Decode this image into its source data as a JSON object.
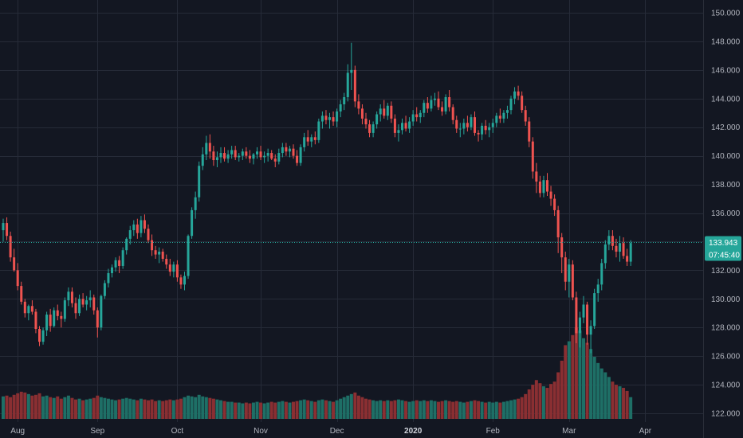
{
  "colors": {
    "background": "#131722",
    "grid": "#262b38",
    "up": "#26a69a",
    "down": "#ef5350",
    "vol_up": "#1e6f66",
    "vol_down": "#8a2f32",
    "price_line": "#26a69a",
    "axis_text": "#b2b5be"
  },
  "price_tag": {
    "price": "133.943",
    "countdown": "07:45:40"
  },
  "chart_data": {
    "type": "candlestick",
    "y_axis": {
      "min": 122,
      "max": 150,
      "ticks": [
        "122.000",
        "124.000",
        "126.000",
        "128.000",
        "130.000",
        "132.000",
        "134.000",
        "136.000",
        "138.000",
        "140.000",
        "142.000",
        "144.000",
        "146.000",
        "148.000",
        "150.000"
      ],
      "position": "right"
    },
    "x_axis": {
      "labels": [
        {
          "text": "Aug",
          "index": 4
        },
        {
          "text": "Sep",
          "index": 26
        },
        {
          "text": "Oct",
          "index": 48
        },
        {
          "text": "Nov",
          "index": 71
        },
        {
          "text": "Dec",
          "index": 92
        },
        {
          "text": "2020",
          "index": 113,
          "bold": true
        },
        {
          "text": "Feb",
          "index": 135
        },
        {
          "text": "Mar",
          "index": 156
        },
        {
          "text": "Apr",
          "index": 177
        }
      ]
    },
    "grid": true,
    "last_price": 133.943,
    "candles": [
      [
        134.8,
        135.6,
        134.0,
        135.3,
        29
      ],
      [
        135.3,
        135.7,
        134.1,
        134.4,
        30
      ],
      [
        134.4,
        134.7,
        132.6,
        132.9,
        28
      ],
      [
        132.9,
        133.5,
        131.9,
        132.0,
        31
      ],
      [
        132.0,
        132.5,
        130.6,
        130.9,
        33
      ],
      [
        130.9,
        131.2,
        129.6,
        129.8,
        35
      ],
      [
        129.8,
        130.0,
        128.7,
        129.0,
        34
      ],
      [
        129.0,
        129.6,
        128.5,
        129.5,
        32
      ],
      [
        129.5,
        129.9,
        128.9,
        129.1,
        30
      ],
      [
        129.1,
        129.3,
        127.6,
        127.9,
        31
      ],
      [
        127.9,
        128.1,
        126.7,
        127.0,
        33
      ],
      [
        127.0,
        128.0,
        126.8,
        127.8,
        29
      ],
      [
        127.8,
        129.1,
        127.4,
        128.9,
        30
      ],
      [
        128.9,
        129.3,
        127.7,
        128.1,
        28
      ],
      [
        128.1,
        129.4,
        128.0,
        129.2,
        27
      ],
      [
        129.2,
        129.6,
        128.5,
        128.8,
        29
      ],
      [
        128.8,
        129.1,
        128.0,
        128.6,
        26
      ],
      [
        128.6,
        130.1,
        128.4,
        129.9,
        28
      ],
      [
        129.9,
        130.8,
        129.5,
        130.5,
        30
      ],
      [
        130.5,
        130.8,
        129.4,
        129.7,
        27
      ],
      [
        129.7,
        130.1,
        128.6,
        129.0,
        25
      ],
      [
        129.0,
        130.3,
        128.8,
        130.0,
        26
      ],
      [
        130.0,
        130.4,
        129.4,
        129.6,
        24
      ],
      [
        129.6,
        130.2,
        129.2,
        129.9,
        25
      ],
      [
        129.9,
        130.6,
        129.4,
        130.1,
        26
      ],
      [
        130.1,
        130.3,
        128.9,
        129.2,
        27
      ],
      [
        129.2,
        129.4,
        127.3,
        128.0,
        30
      ],
      [
        128.0,
        130.3,
        127.8,
        130.2,
        28
      ],
      [
        130.2,
        131.3,
        130.0,
        131.1,
        27
      ],
      [
        131.1,
        132.1,
        130.8,
        131.8,
        26
      ],
      [
        131.8,
        132.4,
        131.5,
        132.2,
        25
      ],
      [
        132.2,
        132.9,
        131.9,
        132.7,
        24
      ],
      [
        132.7,
        133.0,
        131.8,
        132.3,
        25
      ],
      [
        132.3,
        133.6,
        132.1,
        133.4,
        26
      ],
      [
        133.4,
        134.3,
        133.1,
        134.2,
        27
      ],
      [
        134.2,
        135.1,
        133.8,
        134.8,
        26
      ],
      [
        134.8,
        135.5,
        134.4,
        135.2,
        25
      ],
      [
        135.2,
        135.6,
        134.2,
        134.6,
        24
      ],
      [
        134.6,
        135.8,
        134.3,
        135.5,
        26
      ],
      [
        135.5,
        135.9,
        134.6,
        134.9,
        25
      ],
      [
        134.9,
        135.2,
        133.9,
        134.1,
        24
      ],
      [
        134.1,
        134.5,
        133.0,
        133.4,
        25
      ],
      [
        133.4,
        133.7,
        132.8,
        133.1,
        23
      ],
      [
        133.1,
        133.6,
        132.5,
        133.3,
        24
      ],
      [
        133.3,
        133.5,
        132.6,
        132.8,
        23
      ],
      [
        132.8,
        133.1,
        132.1,
        132.4,
        24
      ],
      [
        132.4,
        132.8,
        131.6,
        131.9,
        25
      ],
      [
        131.9,
        132.6,
        131.5,
        132.4,
        24
      ],
      [
        132.4,
        132.7,
        131.2,
        131.5,
        25
      ],
      [
        131.5,
        131.7,
        130.7,
        131.0,
        26
      ],
      [
        131.0,
        131.9,
        130.6,
        131.6,
        28
      ],
      [
        131.6,
        134.5,
        131.4,
        134.4,
        30
      ],
      [
        134.4,
        136.4,
        134.2,
        136.2,
        29
      ],
      [
        136.2,
        137.5,
        135.6,
        137.1,
        28
      ],
      [
        137.1,
        139.6,
        136.8,
        139.3,
        31
      ],
      [
        139.3,
        140.6,
        139.0,
        140.1,
        29
      ],
      [
        140.1,
        141.4,
        139.7,
        140.9,
        28
      ],
      [
        140.9,
        141.5,
        139.8,
        140.3,
        27
      ],
      [
        140.3,
        140.7,
        139.3,
        139.7,
        26
      ],
      [
        139.7,
        140.3,
        139.2,
        139.9,
        25
      ],
      [
        139.9,
        140.6,
        139.5,
        140.2,
        24
      ],
      [
        140.2,
        140.6,
        139.6,
        139.8,
        23
      ],
      [
        139.8,
        140.4,
        139.5,
        140.1,
        22
      ],
      [
        140.1,
        140.7,
        139.8,
        140.4,
        22
      ],
      [
        140.4,
        140.7,
        139.7,
        139.9,
        21
      ],
      [
        139.9,
        140.2,
        139.6,
        140.0,
        21
      ],
      [
        140.0,
        140.5,
        139.7,
        140.3,
        20
      ],
      [
        140.3,
        140.6,
        139.8,
        140.0,
        21
      ],
      [
        140.0,
        140.4,
        139.5,
        139.8,
        20
      ],
      [
        139.8,
        140.2,
        139.4,
        140.1,
        21
      ],
      [
        140.1,
        140.6,
        139.8,
        140.3,
        22
      ],
      [
        140.3,
        140.7,
        139.7,
        139.9,
        21
      ],
      [
        139.9,
        140.3,
        139.5,
        140.0,
        20
      ],
      [
        140.0,
        140.5,
        139.6,
        140.2,
        21
      ],
      [
        140.2,
        140.4,
        139.7,
        139.8,
        22
      ],
      [
        139.8,
        140.1,
        139.2,
        139.6,
        21
      ],
      [
        139.6,
        140.5,
        139.4,
        140.2,
        22
      ],
      [
        140.2,
        140.9,
        139.9,
        140.6,
        23
      ],
      [
        140.6,
        140.9,
        140.0,
        140.3,
        22
      ],
      [
        140.3,
        140.7,
        139.9,
        140.5,
        21
      ],
      [
        140.5,
        140.8,
        139.8,
        140.0,
        22
      ],
      [
        140.0,
        140.4,
        139.3,
        139.5,
        23
      ],
      [
        139.5,
        140.8,
        139.3,
        140.6,
        24
      ],
      [
        140.6,
        141.6,
        140.3,
        141.3,
        25
      ],
      [
        141.3,
        141.8,
        140.7,
        141.0,
        24
      ],
      [
        141.0,
        141.5,
        140.6,
        141.3,
        23
      ],
      [
        141.3,
        141.7,
        140.8,
        141.1,
        22
      ],
      [
        141.1,
        142.6,
        140.9,
        142.4,
        24
      ],
      [
        142.4,
        143.1,
        141.9,
        142.8,
        25
      ],
      [
        142.8,
        143.2,
        142.2,
        142.5,
        24
      ],
      [
        142.5,
        143.0,
        141.9,
        142.7,
        23
      ],
      [
        142.7,
        143.1,
        142.1,
        142.4,
        22
      ],
      [
        142.4,
        143.3,
        142.0,
        143.1,
        24
      ],
      [
        143.1,
        143.9,
        142.7,
        143.6,
        26
      ],
      [
        143.6,
        144.4,
        143.2,
        144.1,
        28
      ],
      [
        144.1,
        146.4,
        143.8,
        145.8,
        30
      ],
      [
        145.8,
        147.9,
        144.6,
        146.0,
        32
      ],
      [
        146.0,
        146.3,
        143.4,
        143.8,
        34
      ],
      [
        143.8,
        144.3,
        142.9,
        143.3,
        30
      ],
      [
        143.3,
        143.6,
        142.2,
        142.6,
        28
      ],
      [
        142.6,
        143.0,
        141.9,
        142.2,
        26
      ],
      [
        142.2,
        142.5,
        141.3,
        141.6,
        25
      ],
      [
        141.6,
        142.4,
        141.3,
        142.2,
        24
      ],
      [
        142.2,
        143.1,
        141.9,
        142.9,
        23
      ],
      [
        142.9,
        143.6,
        142.4,
        143.3,
        24
      ],
      [
        143.3,
        143.9,
        142.6,
        142.8,
        23
      ],
      [
        142.8,
        143.7,
        142.5,
        143.5,
        24
      ],
      [
        143.5,
        143.8,
        142.3,
        142.6,
        23
      ],
      [
        142.6,
        142.9,
        141.3,
        141.6,
        24
      ],
      [
        141.6,
        142.2,
        141.0,
        141.8,
        25
      ],
      [
        141.8,
        142.6,
        141.5,
        142.3,
        24
      ],
      [
        142.3,
        142.8,
        141.7,
        141.9,
        23
      ],
      [
        141.9,
        142.7,
        141.6,
        142.4,
        22
      ],
      [
        142.4,
        143.2,
        142.1,
        142.9,
        23
      ],
      [
        142.9,
        143.4,
        142.4,
        142.7,
        24
      ],
      [
        142.7,
        143.2,
        142.3,
        143.0,
        23
      ],
      [
        143.0,
        143.9,
        142.7,
        143.7,
        24
      ],
      [
        143.7,
        144.1,
        143.0,
        143.3,
        23
      ],
      [
        143.3,
        144.2,
        143.1,
        143.9,
        24
      ],
      [
        143.9,
        144.4,
        143.5,
        144.0,
        23
      ],
      [
        144.0,
        144.5,
        143.2,
        143.4,
        22
      ],
      [
        143.4,
        143.8,
        142.8,
        143.1,
        23
      ],
      [
        143.1,
        144.3,
        142.9,
        144.1,
        24
      ],
      [
        144.1,
        144.6,
        143.1,
        143.4,
        23
      ],
      [
        143.4,
        143.6,
        142.2,
        142.5,
        22
      ],
      [
        142.5,
        142.8,
        141.6,
        141.9,
        23
      ],
      [
        141.9,
        142.3,
        141.3,
        141.9,
        22
      ],
      [
        141.9,
        142.6,
        141.5,
        142.3,
        21
      ],
      [
        142.3,
        142.8,
        141.7,
        142.0,
        22
      ],
      [
        142.0,
        142.9,
        141.8,
        142.7,
        23
      ],
      [
        142.7,
        143.1,
        141.4,
        141.6,
        24
      ],
      [
        141.6,
        141.8,
        141.0,
        141.5,
        23
      ],
      [
        141.5,
        142.3,
        141.1,
        142.1,
        22
      ],
      [
        142.1,
        142.5,
        141.5,
        141.8,
        21
      ],
      [
        141.8,
        142.3,
        141.3,
        142.0,
        22
      ],
      [
        142.0,
        142.6,
        141.6,
        142.3,
        21
      ],
      [
        142.3,
        143.0,
        142.0,
        142.8,
        22
      ],
      [
        142.8,
        143.3,
        142.3,
        142.6,
        21
      ],
      [
        142.6,
        143.2,
        142.3,
        143.0,
        22
      ],
      [
        143.0,
        143.5,
        142.6,
        143.2,
        23
      ],
      [
        143.2,
        144.2,
        142.9,
        144.0,
        24
      ],
      [
        144.0,
        144.8,
        143.6,
        144.5,
        25
      ],
      [
        144.5,
        144.9,
        143.9,
        144.2,
        26
      ],
      [
        144.2,
        144.5,
        143.0,
        143.2,
        28
      ],
      [
        143.2,
        143.5,
        142.1,
        142.4,
        32
      ],
      [
        142.4,
        142.7,
        140.6,
        141.0,
        38
      ],
      [
        141.0,
        141.3,
        138.4,
        138.9,
        44
      ],
      [
        138.9,
        139.5,
        137.4,
        138.2,
        50
      ],
      [
        138.2,
        138.6,
        137.1,
        137.4,
        46
      ],
      [
        137.4,
        138.6,
        137.1,
        138.3,
        42
      ],
      [
        138.3,
        138.8,
        137.2,
        137.5,
        40
      ],
      [
        137.5,
        137.9,
        136.5,
        137.0,
        45
      ],
      [
        137.0,
        137.3,
        135.8,
        136.2,
        48
      ],
      [
        136.2,
        136.5,
        133.2,
        134.3,
        60
      ],
      [
        134.3,
        134.6,
        131.8,
        132.9,
        75
      ],
      [
        132.9,
        133.3,
        130.6,
        131.2,
        95
      ],
      [
        131.2,
        132.8,
        130.1,
        132.4,
        100
      ],
      [
        132.4,
        132.7,
        129.9,
        130.1,
        108
      ],
      [
        130.1,
        130.5,
        126.9,
        127.6,
        118
      ],
      [
        127.6,
        129.1,
        126.6,
        128.7,
        114
      ],
      [
        128.7,
        130.2,
        128.3,
        129.6,
        104
      ],
      [
        129.6,
        129.8,
        126.8,
        127.5,
        98
      ],
      [
        127.5,
        128.5,
        126.2,
        128.1,
        90
      ],
      [
        128.1,
        130.7,
        127.9,
        130.4,
        80
      ],
      [
        130.4,
        131.4,
        129.8,
        131.0,
        72
      ],
      [
        131.0,
        132.8,
        130.6,
        132.5,
        65
      ],
      [
        132.5,
        134.1,
        132.1,
        133.8,
        60
      ],
      [
        133.8,
        134.8,
        133.4,
        134.4,
        54
      ],
      [
        134.4,
        134.8,
        133.4,
        133.7,
        48
      ],
      [
        133.7,
        134.2,
        132.9,
        133.3,
        44
      ],
      [
        133.3,
        134.4,
        132.6,
        133.9,
        42
      ],
      [
        133.9,
        134.3,
        132.8,
        133.0,
        40
      ],
      [
        133.0,
        133.5,
        132.3,
        132.6,
        36
      ],
      [
        132.6,
        134.1,
        132.3,
        133.9,
        28
      ]
    ]
  }
}
